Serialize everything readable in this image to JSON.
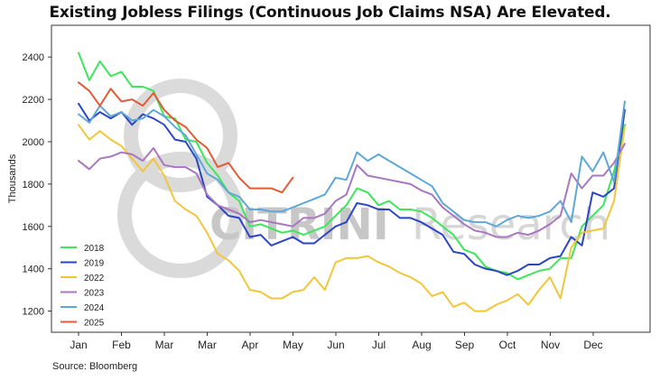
{
  "chart_data": {
    "type": "line",
    "title": "Existing Jobless Filings (Continuous Job Claims NSA) Are Elevated.",
    "ylabel": "Thousands",
    "xlabel": "",
    "ylim": [
      1100,
      2550
    ],
    "yticks": [
      1200,
      1400,
      1600,
      1800,
      2000,
      2200,
      2400
    ],
    "xticks": [
      "Jan",
      "Feb",
      "Mar",
      "Mar",
      "Apr",
      "May",
      "Jun",
      "Jul",
      "Aug",
      "Sep",
      "Oct",
      "Nov",
      "Dec"
    ],
    "x_week_range": [
      1,
      52
    ],
    "grid": false,
    "legend_position": "bottom-left",
    "series": [
      {
        "name": "2018",
        "color": "#3ee65c",
        "values": [
          2420,
          2290,
          2380,
          2310,
          2330,
          2260,
          2260,
          2240,
          2120,
          2110,
          2010,
          2000,
          1900,
          1840,
          1760,
          1720,
          1600,
          1610,
          1590,
          1570,
          1580,
          1560,
          1580,
          1600,
          1650,
          1700,
          1780,
          1760,
          1700,
          1720,
          1680,
          1680,
          1670,
          1640,
          1600,
          1560,
          1490,
          1470,
          1410,
          1390,
          1380,
          1350,
          1370,
          1390,
          1400,
          1450,
          1450,
          1600,
          1650,
          1700,
          1860,
          2080
        ]
      },
      {
        "name": "2019",
        "color": "#2b45c4",
        "values": [
          2180,
          2100,
          2140,
          2110,
          2140,
          2080,
          2130,
          2110,
          2080,
          2010,
          2000,
          1920,
          1740,
          1700,
          1650,
          1640,
          1550,
          1560,
          1510,
          1530,
          1550,
          1520,
          1520,
          1560,
          1600,
          1620,
          1710,
          1700,
          1680,
          1680,
          1640,
          1640,
          1620,
          1590,
          1560,
          1480,
          1470,
          1420,
          1400,
          1390,
          1370,
          1390,
          1420,
          1420,
          1450,
          1460,
          1550,
          1510,
          1760,
          1740,
          1780,
          2150
        ]
      },
      {
        "name": "2022",
        "color": "#f2c63b",
        "values": [
          2080,
          2010,
          2050,
          2010,
          1980,
          1920,
          1860,
          1920,
          1840,
          1720,
          1680,
          1650,
          1570,
          1470,
          1440,
          1390,
          1300,
          1290,
          1260,
          1260,
          1290,
          1300,
          1360,
          1300,
          1430,
          1450,
          1450,
          1460,
          1430,
          1410,
          1380,
          1360,
          1330,
          1270,
          1290,
          1220,
          1240,
          1200,
          1200,
          1230,
          1250,
          1280,
          1230,
          1300,
          1360,
          1260,
          1500,
          1570,
          1580,
          1590,
          1720,
          2070
        ]
      },
      {
        "name": "2023",
        "color": "#a877bf",
        "values": [
          1910,
          1870,
          1920,
          1930,
          1950,
          1940,
          1910,
          1970,
          1890,
          1880,
          1880,
          1850,
          1750,
          1700,
          1680,
          1660,
          1620,
          1630,
          1620,
          1610,
          1600,
          1640,
          1640,
          1660,
          1720,
          1750,
          1890,
          1840,
          1830,
          1820,
          1810,
          1800,
          1770,
          1750,
          1690,
          1650,
          1610,
          1580,
          1570,
          1550,
          1550,
          1570,
          1560,
          1580,
          1610,
          1650,
          1850,
          1780,
          1840,
          1840,
          1900,
          1990
        ]
      },
      {
        "name": "2024",
        "color": "#5ea7d6",
        "values": [
          2130,
          2090,
          2170,
          2120,
          2140,
          2100,
          2110,
          2150,
          2120,
          2070,
          2030,
          1940,
          1850,
          1820,
          1760,
          1740,
          1680,
          1680,
          1670,
          1670,
          1690,
          1710,
          1730,
          1750,
          1830,
          1820,
          1950,
          1910,
          1940,
          1910,
          1880,
          1850,
          1820,
          1790,
          1710,
          1670,
          1630,
          1620,
          1620,
          1600,
          1630,
          1650,
          1640,
          1650,
          1670,
          1720,
          1620,
          1930,
          1860,
          1950,
          1810,
          2190
        ]
      },
      {
        "name": "2025",
        "color": "#e35a36",
        "values": [
          2280,
          2240,
          2170,
          2250,
          2190,
          2200,
          2170,
          2230,
          2150,
          2100,
          2070,
          2010,
          1970,
          1880,
          1900,
          1830,
          1780,
          1780,
          1780,
          1760,
          1830
        ]
      }
    ]
  },
  "source": "Source: Bloomberg",
  "watermark": {
    "text_bold": "CITRINI",
    "text_light": "Research"
  }
}
